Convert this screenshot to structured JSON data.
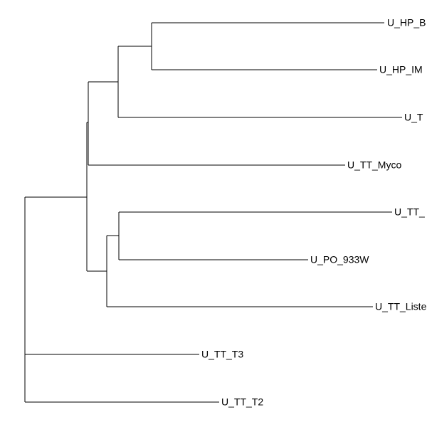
{
  "leaves": [
    {
      "label": "U_HP_B"
    },
    {
      "label": "U_HP_IM"
    },
    {
      "label": "U_T"
    },
    {
      "label": "U_TT_Myco"
    },
    {
      "label": "U_TT_"
    },
    {
      "label": "U_PO_933W"
    },
    {
      "label": "U_TT_Liste"
    },
    {
      "label": "U_TT_T3"
    },
    {
      "label": "U_TT_T2"
    }
  ]
}
